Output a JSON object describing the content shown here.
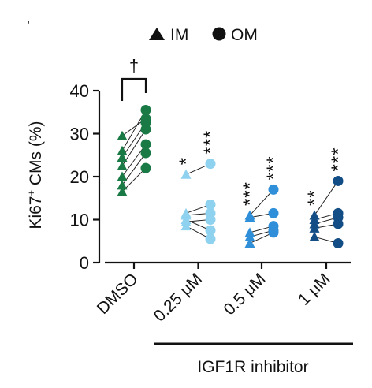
{
  "panel_mark": "ʼ",
  "legend": [
    {
      "label": "IM",
      "marker": "triangle-icon"
    },
    {
      "label": "OM",
      "marker": "circle-icon"
    }
  ],
  "chart_data": {
    "type": "scatter",
    "ylabel_main": "Ki67",
    "ylabel_sup": "+",
    "ylabel_rest": " CMs (%)",
    "ylim": [
      0,
      40
    ],
    "yticks": [
      0,
      10,
      20,
      30,
      40
    ],
    "categories": [
      "DMSO",
      "0.25 μM",
      "0.5 μM",
      "1 μM"
    ],
    "group_bar_label": "IGF1R inhibitor",
    "colors": [
      "#1a7a45",
      "#8ed2ef",
      "#2f8fd8",
      "#124d86"
    ],
    "pairs": [
      [
        [
          16.5,
          22
        ],
        [
          18,
          25.5
        ],
        [
          20,
          27.5
        ],
        [
          22.5,
          31
        ],
        [
          24.5,
          32.5
        ],
        [
          26,
          35.5
        ],
        [
          29.5,
          33.5
        ]
      ],
      [
        [
          20.5,
          23
        ],
        [
          11.5,
          13.5
        ],
        [
          11,
          11.5
        ],
        [
          10,
          7.5
        ],
        [
          9.5,
          10
        ],
        [
          8.5,
          5.5
        ]
      ],
      [
        [
          11,
          17
        ],
        [
          10.5,
          11.5
        ],
        [
          7,
          8.5
        ],
        [
          6,
          7.5
        ],
        [
          4.5,
          7
        ]
      ],
      [
        [
          11,
          19
        ],
        [
          10,
          11.5
        ],
        [
          9,
          10.5
        ],
        [
          8,
          9
        ],
        [
          6,
          4.5
        ]
      ]
    ],
    "significance": [
      {
        "im": "",
        "om": ""
      },
      {
        "im": "*",
        "om": "***"
      },
      {
        "im": "***",
        "om": "***"
      },
      {
        "im": "**",
        "om": "***"
      }
    ],
    "bracket_label": "†"
  }
}
